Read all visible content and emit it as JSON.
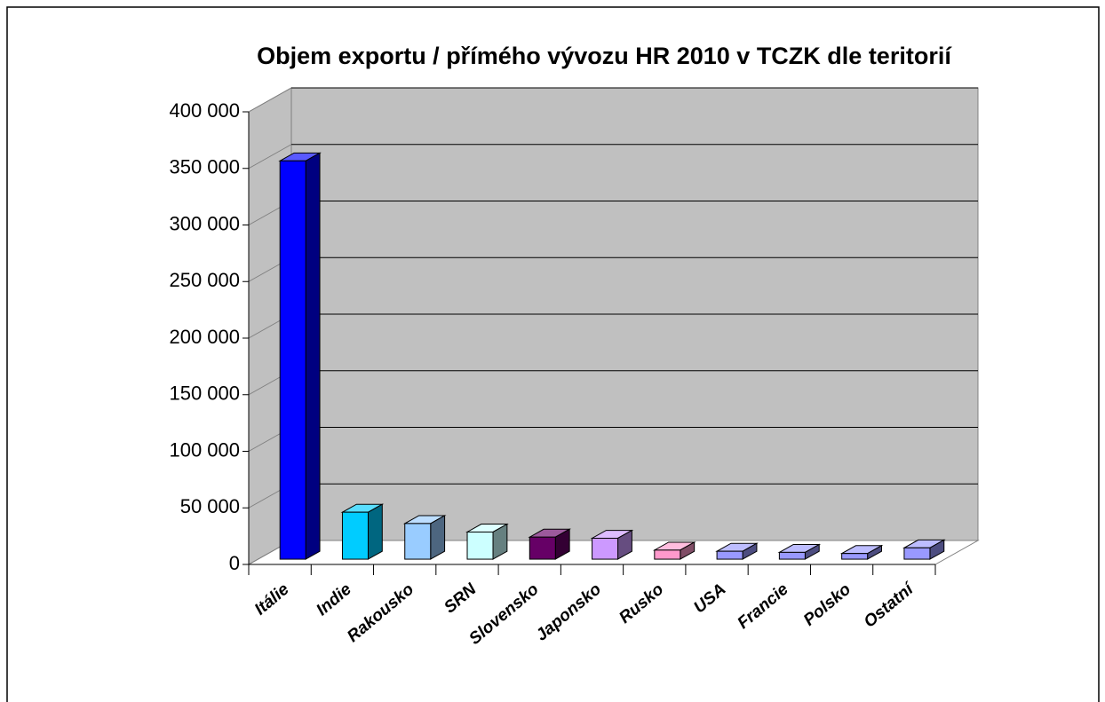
{
  "chart_data": {
    "type": "bar3d",
    "title": "Objem exportu / přímého vývozu HR 2010 v TCZK dle teritorií",
    "categories": [
      "Itálie",
      "Indie",
      "Rakousko",
      "SRN",
      "Slovensko",
      "Japonsko",
      "Rusko",
      "USA",
      "Francie",
      "Polsko",
      "Ostatní"
    ],
    "values": [
      352000,
      41500,
      31500,
      24000,
      19500,
      18500,
      8000,
      7000,
      6000,
      5000,
      10000
    ],
    "colors": [
      "#0000ff",
      "#00ccff",
      "#99ccff",
      "#ccffff",
      "#660066",
      "#cc99ff",
      "#ff99cc",
      "#9999ff",
      "#9999ff",
      "#9999ff",
      "#9999ff"
    ],
    "ylim": [
      0,
      400000
    ],
    "yticks": [
      0,
      {
        "value": 50000,
        "label": "50 000"
      },
      {
        "value": 100000,
        "label": "100 000"
      },
      {
        "value": 150000,
        "label": "150 000"
      },
      {
        "value": 200000,
        "label": "200 000"
      },
      {
        "value": 250000,
        "label": "250 000"
      },
      {
        "value": 300000,
        "label": "300 000"
      },
      {
        "value": 350000,
        "label": "350 000"
      },
      {
        "value": 400000,
        "label": "400 000"
      }
    ],
    "grid": true
  }
}
